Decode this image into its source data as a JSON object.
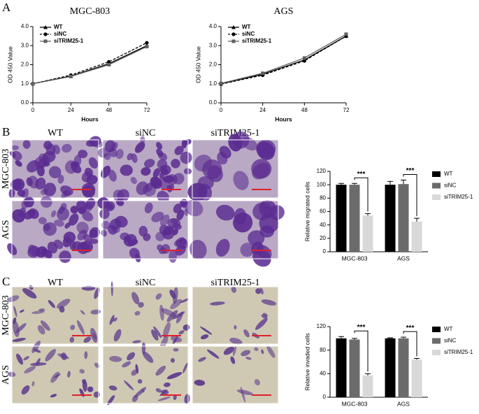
{
  "panel_labels": [
    "A",
    "B",
    "C"
  ],
  "image_panels": [
    {
      "columns": [
        "WT",
        "siNC",
        "siTRIM25-1"
      ],
      "rows": [
        "MGC-803",
        "AGS"
      ]
    },
    {
      "columns": [
        "WT",
        "siNC",
        "siTRIM25-1"
      ],
      "rows": [
        "MGC-803",
        "AGS"
      ]
    }
  ],
  "chart_data": [
    {
      "type": "line",
      "title": "MGC-803",
      "x_label": "Hours",
      "y_label": "OD 450 Value",
      "x": [
        0,
        24,
        48,
        72
      ],
      "xlim": [
        0,
        72
      ],
      "xticks": [
        0,
        24,
        48,
        72
      ],
      "ylim": [
        0,
        4
      ],
      "yticks": [
        {
          "value": 0,
          "label": "0.0"
        },
        {
          "value": 1,
          "label": "1.0"
        },
        {
          "value": 2,
          "label": "2.0"
        },
        {
          "value": 3,
          "label": "3.0"
        },
        {
          "value": 4,
          "label": "4.0"
        }
      ],
      "legend": "upper left",
      "series": [
        {
          "name": "WT",
          "color": "#000000",
          "marker": "triangle",
          "dash": false,
          "values": [
            1.0,
            1.4,
            2.05,
            3.0
          ]
        },
        {
          "name": "siNC",
          "color": "#000000",
          "marker": "circle",
          "dash": true,
          "values": [
            1.0,
            1.45,
            2.15,
            3.15
          ]
        },
        {
          "name": "siTRIM25-1",
          "color": "#606060",
          "marker": "square",
          "dash": false,
          "values": [
            1.0,
            1.38,
            2.0,
            2.95
          ]
        }
      ]
    },
    {
      "type": "line",
      "title": "AGS",
      "x_label": "Hours",
      "y_label": "OD 450 Value",
      "x": [
        0,
        24,
        48,
        72
      ],
      "xlim": [
        0,
        72
      ],
      "xticks": [
        0,
        24,
        48,
        72
      ],
      "ylim": [
        0,
        4
      ],
      "yticks": [
        {
          "value": 0,
          "label": "0.0"
        },
        {
          "value": 1,
          "label": "1.0"
        },
        {
          "value": 2,
          "label": "2.0"
        },
        {
          "value": 3,
          "label": "3.0"
        },
        {
          "value": 4,
          "label": "4.0"
        }
      ],
      "legend": "upper left",
      "series": [
        {
          "name": "WT",
          "color": "#000000",
          "marker": "triangle",
          "dash": false,
          "values": [
            1.0,
            1.5,
            2.25,
            3.5
          ]
        },
        {
          "name": "siNC",
          "color": "#000000",
          "marker": "circle",
          "dash": true,
          "values": [
            0.98,
            1.45,
            2.2,
            3.5
          ]
        },
        {
          "name": "siTRIM25-1",
          "color": "#606060",
          "marker": "square",
          "dash": false,
          "values": [
            1.02,
            1.55,
            2.35,
            3.6
          ]
        }
      ]
    },
    {
      "type": "bar",
      "y_label": "Relative migrated cells",
      "categories": [
        "MGC-803",
        "AGS"
      ],
      "ylim": [
        0,
        120
      ],
      "yticks": [
        0,
        20,
        40,
        60,
        80,
        100,
        120
      ],
      "legend": "right",
      "annotations": [
        "***",
        "***"
      ],
      "series": [
        {
          "name": "WT",
          "color": "#000000",
          "values": [
            100,
            100
          ],
          "errors": [
            2,
            5
          ]
        },
        {
          "name": "siNC",
          "color": "#6b6b6b",
          "values": [
            100,
            101
          ],
          "errors": [
            2,
            6
          ]
        },
        {
          "name": "siTRIM25-1",
          "color": "#d9d9d9",
          "values": [
            54,
            45
          ],
          "errors": [
            3,
            5
          ]
        }
      ]
    },
    {
      "type": "bar",
      "y_label": "Relative invaded cells",
      "categories": [
        "MGC-803",
        "AGS"
      ],
      "ylim": [
        0,
        120
      ],
      "yticks": [
        0,
        40,
        80,
        120
      ],
      "legend": "right",
      "annotations": [
        "***",
        "***"
      ],
      "series": [
        {
          "name": "WT",
          "color": "#000000",
          "values": [
            100,
            100
          ],
          "errors": [
            3,
            1
          ]
        },
        {
          "name": "siNC",
          "color": "#6b6b6b",
          "values": [
            98,
            100
          ],
          "errors": [
            2,
            2
          ]
        },
        {
          "name": "siTRIM25-1",
          "color": "#d9d9d9",
          "values": [
            37,
            64
          ],
          "errors": [
            3,
            2
          ]
        }
      ]
    }
  ]
}
